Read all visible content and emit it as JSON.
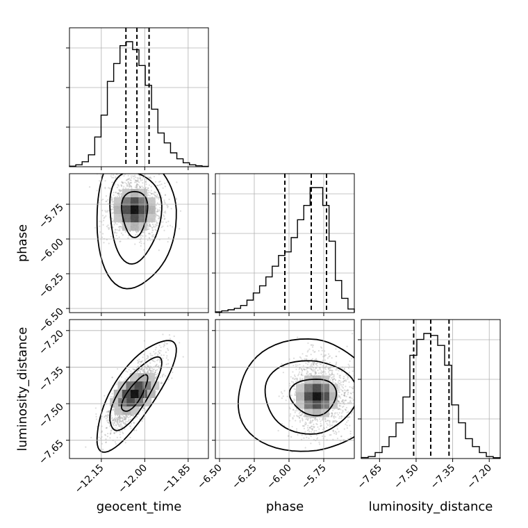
{
  "chart_data": {
    "type": "corner",
    "parameters": [
      {
        "key": "geocent_time",
        "label": "geocent_time",
        "range": [
          -12.26,
          -11.78
        ],
        "ticks": [
          -12.15,
          -12.0,
          -11.85
        ],
        "tick_labels": [
          "−12.15",
          "−12.00",
          "−11.85"
        ],
        "quantiles": [
          -12.065,
          -12.027,
          -11.985
        ]
      },
      {
        "key": "phase",
        "label": "phase",
        "range": [
          -6.53,
          -5.53
        ],
        "ticks": [
          -6.5,
          -6.25,
          -6.0,
          -5.75
        ],
        "tick_labels": [
          "−6.50",
          "−6.25",
          "−6.00",
          "−5.75"
        ],
        "quantiles": [
          -6.03,
          -5.84,
          -5.73
        ]
      },
      {
        "key": "luminosity_distance",
        "label": "luminosity_distance",
        "range": [
          -7.725,
          -7.155
        ],
        "ticks": [
          -7.65,
          -7.5,
          -7.35,
          -7.2
        ],
        "tick_labels": [
          "−7.65",
          "−7.50",
          "−7.35",
          "−7.20"
        ],
        "quantiles": [
          -7.51,
          -7.44,
          -7.365
        ]
      }
    ],
    "histograms": {
      "geocent_time": [
        0.3,
        1,
        2.5,
        6,
        15,
        26,
        43,
        52,
        61,
        63,
        59,
        51,
        41,
        29,
        17,
        12,
        7,
        4,
        2,
        1,
        0.5,
        0.2
      ],
      "phase": [
        0.2,
        0.5,
        0.8,
        1.2,
        2,
        3.5,
        5.5,
        7.5,
        10,
        13,
        16,
        17,
        21,
        26,
        30,
        35,
        35,
        30,
        20,
        9,
        4,
        1
      ],
      "luminosity_distance": [
        0.5,
        1,
        3,
        6,
        11,
        18,
        31,
        52,
        60,
        63,
        62,
        57,
        47,
        27,
        18,
        10,
        6,
        3,
        1,
        0.4
      ]
    },
    "pairs": [
      {
        "x": "geocent_time",
        "y": "phase",
        "mode": [
          -12.035,
          -5.79
        ],
        "sx": 0.045,
        "sy": 0.14,
        "rho": 0.0,
        "skew_y": 1
      },
      {
        "x": "geocent_time",
        "y": "luminosity_distance",
        "mode": [
          -12.035,
          -7.46
        ],
        "sx": 0.045,
        "sy": 0.075,
        "rho": 0.78,
        "skew_y": 0
      },
      {
        "x": "phase",
        "y": "luminosity_distance",
        "mode": [
          -5.8,
          -7.47
        ],
        "sx": 0.14,
        "sy": 0.075,
        "rho": 0.0,
        "skew_x": -1
      }
    ],
    "levels": [
      0.39,
      0.86,
      0.99
    ],
    "grid": true
  }
}
